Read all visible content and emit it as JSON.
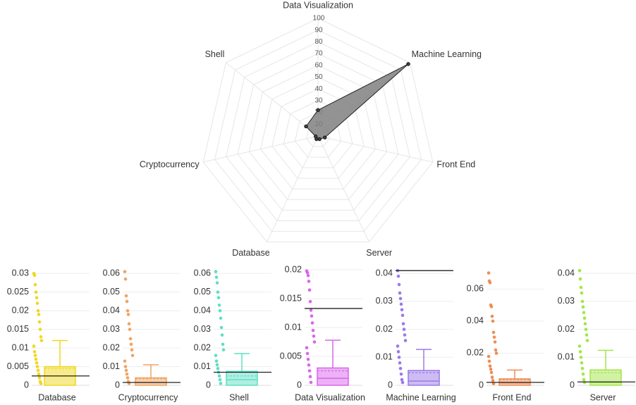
{
  "chart_data": [
    {
      "type": "radar",
      "categories": [
        "Data Visualization",
        "Machine Learning",
        "Front End",
        "Server",
        "Database",
        "Cryptocurrency",
        "Shell"
      ],
      "values": [
        22,
        98,
        6,
        3,
        3,
        2,
        13
      ],
      "rlim": [
        0,
        100
      ],
      "rticks": [
        10,
        20,
        30,
        40,
        50,
        60,
        70,
        80,
        90,
        100
      ],
      "color": "#808080"
    },
    {
      "type": "box",
      "name": "Database",
      "color": "#f0d81e",
      "ylim": [
        0,
        0.031
      ],
      "yticks": [
        0,
        0.005,
        0.01,
        0.015,
        0.02,
        0.025,
        0.03
      ],
      "box": {
        "min": 0,
        "q1": 0,
        "median": 0.0025,
        "q3": 0.005,
        "max": 0.012,
        "mean": 0.0045
      },
      "reference": 0.0025,
      "points": [
        0.03,
        0.0295,
        0.027,
        0.025,
        0.0235,
        0.022,
        0.02,
        0.019,
        0.017,
        0.015,
        0.013,
        0.012,
        0.0105,
        0.009,
        0.008,
        0.007,
        0.006,
        0.005,
        0.004,
        0.003,
        0.002,
        0.001,
        0.0005
      ]
    },
    {
      "type": "box",
      "name": "Cryptocurrency",
      "color": "#f0a463",
      "ylim": [
        0,
        0.062
      ],
      "yticks": [
        0,
        0.01,
        0.02,
        0.03,
        0.04,
        0.05,
        0.06
      ],
      "box": {
        "min": 0,
        "q1": 0,
        "median": 0.0015,
        "q3": 0.004,
        "max": 0.011,
        "mean": 0.0035
      },
      "reference": 0.0015,
      "points": [
        0.061,
        0.057,
        0.048,
        0.045,
        0.04,
        0.038,
        0.033,
        0.03,
        0.025,
        0.022,
        0.019,
        0.016,
        0.013,
        0.01,
        0.008,
        0.006,
        0.004,
        0.002,
        0.001
      ]
    },
    {
      "type": "box",
      "name": "Shell",
      "color": "#5ee0c6",
      "ylim": [
        0,
        0.062
      ],
      "yticks": [
        0,
        0.01,
        0.02,
        0.03,
        0.04,
        0.05,
        0.06
      ],
      "box": {
        "min": 0,
        "q1": 0,
        "median": 0.003,
        "q3": 0.0075,
        "max": 0.017,
        "mean": 0.005
      },
      "reference": 0.007,
      "points": [
        0.061,
        0.058,
        0.055,
        0.05,
        0.047,
        0.043,
        0.04,
        0.036,
        0.031,
        0.027,
        0.022,
        0.019,
        0.016,
        0.013,
        0.011,
        0.009,
        0.007,
        0.005,
        0.003,
        0.001
      ]
    },
    {
      "type": "box",
      "name": "Data Visualization",
      "color": "#d966ec",
      "ylim": [
        0,
        0.02
      ],
      "yticks": [
        0,
        0.005,
        0.01,
        0.015,
        0.02
      ],
      "box": {
        "min": 0,
        "q1": 0,
        "median": 0.0012,
        "q3": 0.003,
        "max": 0.0078,
        "mean": 0.0025
      },
      "reference": 0.0133,
      "points": [
        0.0198,
        0.0195,
        0.019,
        0.018,
        0.0165,
        0.0145,
        0.013,
        0.012,
        0.0108,
        0.0095,
        0.0085,
        0.0075,
        0.0065,
        0.0055,
        0.0045,
        0.0035,
        0.0025,
        0.0015,
        0.0005
      ]
    },
    {
      "type": "box",
      "name": "Machine Learning",
      "color": "#9b7ae8",
      "ylim": [
        0,
        0.0413
      ],
      "yticks": [
        0,
        0.01,
        0.02,
        0.03,
        0.04
      ],
      "box": {
        "min": 0,
        "q1": 0,
        "median": 0.0015,
        "q3": 0.0053,
        "max": 0.0128,
        "mean": 0.0045
      },
      "reference": 0.041,
      "points": [
        0.041,
        0.039,
        0.036,
        0.033,
        0.031,
        0.029,
        0.027,
        0.025,
        0.022,
        0.02,
        0.018,
        0.016,
        0.014,
        0.012,
        0.01,
        0.008,
        0.006,
        0.004,
        0.002,
        0.001
      ]
    },
    {
      "type": "box",
      "name": "Front End",
      "color": "#ee8e55",
      "ylim": [
        0,
        0.072
      ],
      "yticks": [
        0,
        0.02,
        0.04,
        0.06
      ],
      "box": {
        "min": 0,
        "q1": 0,
        "median": 0.0015,
        "q3": 0.004,
        "max": 0.0095,
        "mean": 0.0035
      },
      "reference": 0.0018,
      "points": [
        0.07,
        0.065,
        0.064,
        0.05,
        0.049,
        0.043,
        0.04,
        0.033,
        0.03,
        0.027,
        0.022,
        0.02,
        0.018,
        0.015,
        0.012,
        0.01,
        0.008,
        0.005,
        0.003,
        0.001
      ]
    },
    {
      "type": "box",
      "name": "Server",
      "color": "#a3e64a",
      "ylim": [
        0,
        0.0413
      ],
      "yticks": [
        0,
        0.01,
        0.02,
        0.03,
        0.04
      ],
      "box": {
        "min": 0,
        "q1": 0,
        "median": 0.001,
        "q3": 0.0055,
        "max": 0.0125,
        "mean": 0.0045
      },
      "reference": 0.0012,
      "points": [
        0.041,
        0.038,
        0.035,
        0.033,
        0.03,
        0.028,
        0.026,
        0.024,
        0.022,
        0.02,
        0.018,
        0.016,
        0.014,
        0.012,
        0.01,
        0.008,
        0.006,
        0.004,
        0.002,
        0.001
      ]
    }
  ]
}
